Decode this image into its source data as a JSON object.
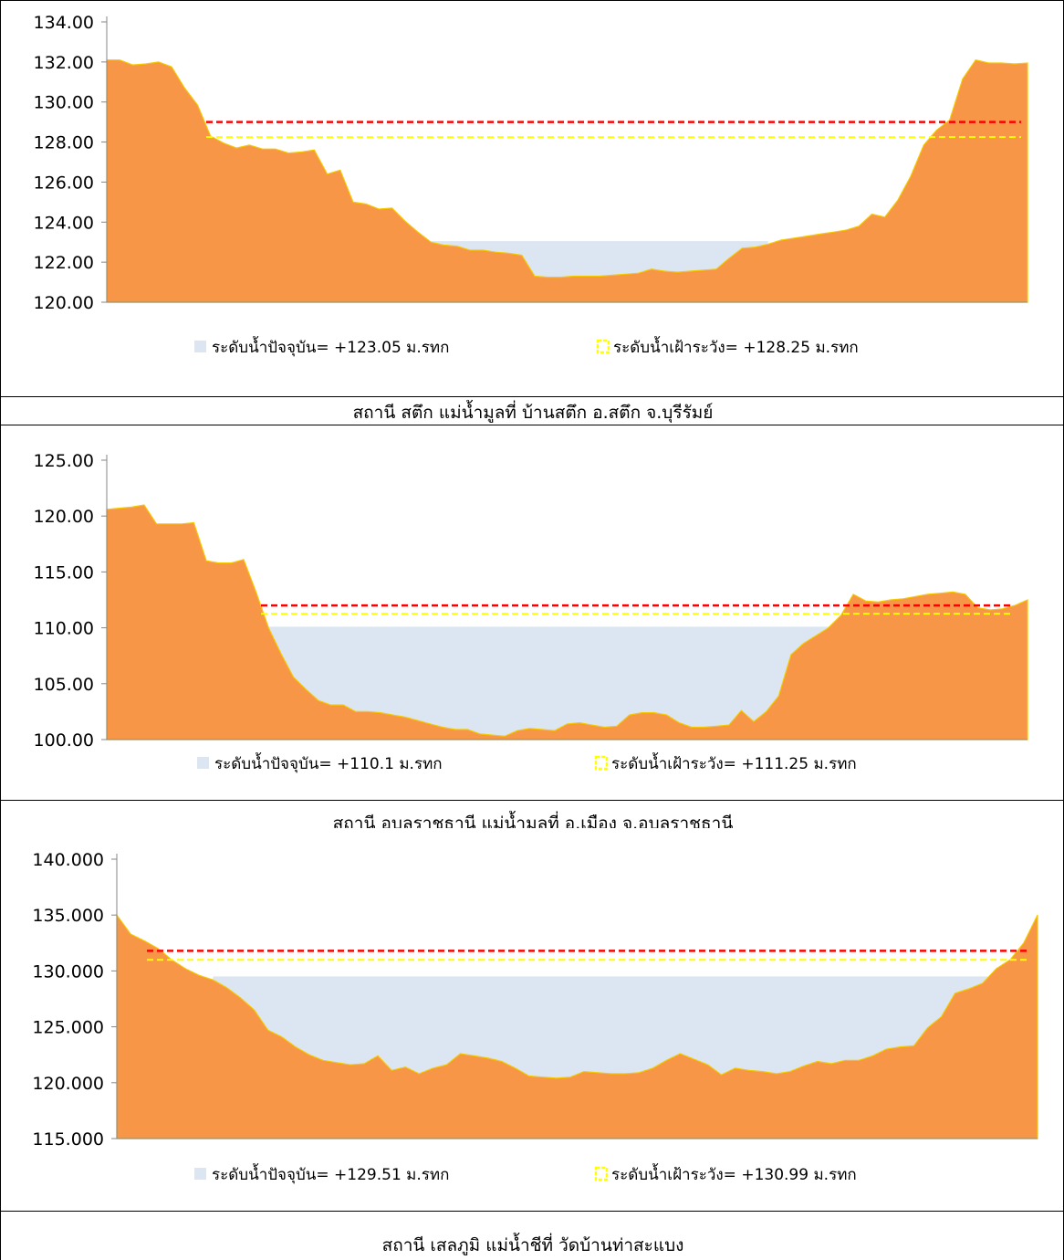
{
  "chart_data": [
    {
      "type": "area",
      "title": "",
      "ylim": [
        120,
        134
      ],
      "yticks": [
        "120.00",
        "122.00",
        "124.00",
        "126.00",
        "128.00",
        "130.00",
        "132.00",
        "134.00"
      ],
      "ytick_values": [
        120,
        122,
        124,
        126,
        128,
        130,
        132,
        134
      ],
      "grid": false,
      "legend_position": "bottom",
      "water_level": 123.05,
      "warning_level": 128.25,
      "red_level": 129.0,
      "ground_profile": [
        132.1,
        132.1,
        131.85,
        131.9,
        132.0,
        131.75,
        130.7,
        129.85,
        128.3,
        127.95,
        127.7,
        127.85,
        127.65,
        127.65,
        127.45,
        127.5,
        127.6,
        126.4,
        126.6,
        125.0,
        124.9,
        124.65,
        124.7,
        124.05,
        123.5,
        123.0,
        122.85,
        122.8,
        122.6,
        122.6,
        122.5,
        122.45,
        122.35,
        121.3,
        121.25,
        121.25,
        121.3,
        121.3,
        121.3,
        121.35,
        121.4,
        121.45,
        121.65,
        121.55,
        121.5,
        121.55,
        121.6,
        121.65,
        122.2,
        122.7,
        122.75,
        122.9,
        123.1,
        123.2,
        123.3,
        123.4,
        123.5,
        123.6,
        123.8,
        124.4,
        124.25,
        125.1,
        126.3,
        127.85,
        128.6,
        129.1,
        131.15,
        132.1,
        131.95,
        131.95,
        131.9,
        131.95
      ],
      "legend": {
        "water": "ระดับน้ำปัจจุบัน= +123.05 ม.รทก",
        "warning": "ระดับน้ำเฝ้าระวัง= +128.25 ม.รทก"
      },
      "caption": "สถานี สตึก แม่น้ำมูลที่ บ้านสตึก อ.สตึก จ.บุรีรัมย์"
    },
    {
      "type": "area",
      "title": "",
      "ylim": [
        100,
        125
      ],
      "yticks": [
        "100.00",
        "105.00",
        "110.00",
        "115.00",
        "120.00",
        "125.00"
      ],
      "ytick_values": [
        100,
        105,
        110,
        115,
        120,
        125
      ],
      "grid": false,
      "legend_position": "bottom",
      "water_level": 110.1,
      "warning_level": 111.25,
      "red_level": 112.0,
      "ground_profile": [
        120.6,
        120.7,
        120.8,
        121.0,
        119.3,
        119.3,
        119.3,
        119.4,
        116.0,
        115.8,
        115.8,
        116.1,
        113.2,
        110.0,
        107.7,
        105.6,
        104.5,
        103.5,
        103.1,
        103.1,
        102.5,
        102.5,
        102.4,
        102.2,
        102.0,
        101.7,
        101.4,
        101.1,
        100.9,
        100.9,
        100.5,
        100.4,
        100.3,
        100.8,
        101.0,
        100.9,
        100.8,
        101.4,
        101.5,
        101.3,
        101.1,
        101.2,
        102.2,
        102.4,
        102.4,
        102.2,
        101.5,
        101.1,
        101.1,
        101.2,
        101.3,
        102.6,
        101.6,
        102.5,
        103.9,
        107.6,
        108.6,
        109.3,
        110.0,
        111.1,
        113.0,
        112.4,
        112.3,
        112.5,
        112.6,
        112.8,
        113.0,
        113.1,
        113.2,
        113.0,
        111.8,
        111.6,
        111.7,
        112.0,
        112.5
      ],
      "legend": {
        "water": "ระดับน้ำปัจจุบัน= +110.1 ม.รทก",
        "warning": "ระดับน้ำเฝ้าระวัง= +111.25 ม.รทก"
      },
      "caption": "สถานี อุบลราชธานี แม่น้ำมูลที่ อ.เมือง จ.อุบลราชธานี"
    },
    {
      "type": "area",
      "title": "",
      "ylim": [
        115,
        140
      ],
      "yticks": [
        "115.000",
        "120.000",
        "125.000",
        "130.000",
        "135.000",
        "140.000"
      ],
      "ytick_values": [
        115,
        120,
        125,
        130,
        135,
        140
      ],
      "grid": false,
      "legend_position": "bottom",
      "water_level": 129.51,
      "warning_level": 130.99,
      "red_level": 131.8,
      "ground_profile": [
        135.0,
        133.3,
        132.7,
        132.0,
        131.0,
        130.2,
        129.6,
        129.2,
        128.5,
        127.6,
        126.5,
        124.7,
        124.1,
        123.2,
        122.5,
        122.0,
        121.8,
        121.6,
        121.7,
        122.4,
        121.1,
        121.4,
        120.8,
        121.3,
        121.6,
        122.6,
        122.4,
        122.2,
        121.9,
        121.3,
        120.6,
        120.5,
        120.4,
        120.5,
        121.0,
        120.9,
        120.8,
        120.8,
        120.9,
        121.3,
        122.0,
        122.6,
        122.1,
        121.6,
        120.7,
        121.3,
        121.1,
        121.0,
        120.8,
        121.0,
        121.5,
        121.9,
        121.7,
        122.0,
        122.0,
        122.4,
        123.0,
        123.2,
        123.3,
        124.9,
        125.9,
        128.0,
        128.4,
        128.9,
        130.2,
        131.0,
        132.5,
        135.0
      ],
      "legend": {
        "water": "ระดับน้ำปัจจุบัน= +129.51 ม.รทก",
        "warning": "ระดับน้ำเฝ้าระวัง= +130.99 ม.รทก"
      },
      "caption": "สถานี เสลภูมิ แม่น้ำชีที่ วัดบ้านท่าสะแบง"
    }
  ],
  "colors": {
    "ground": "#f79646",
    "ground_edge": "#f5c800",
    "water": "#dce6f2",
    "warning_line": "#ffff00",
    "alert_line": "#ff0000",
    "axis": "#868686"
  }
}
